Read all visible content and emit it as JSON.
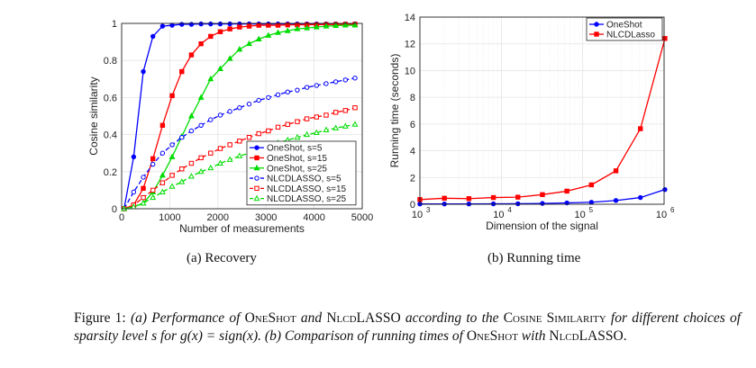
{
  "chart_data": [
    {
      "type": "line",
      "subcaption": "(a) Recovery",
      "xlabel": "Number of measurements",
      "ylabel": "Cosine similarity",
      "xlim": [
        0,
        5000
      ],
      "ylim": [
        0,
        1
      ],
      "xticks": [
        "0",
        "1000",
        "2000",
        "3000",
        "4000",
        "5000"
      ],
      "yticks": [
        "0",
        "0.2",
        "0.4",
        "0.6",
        "0.8",
        "1"
      ],
      "grid": true,
      "legend_position": "bottom-right",
      "x": [
        50,
        250,
        450,
        650,
        850,
        1050,
        1250,
        1450,
        1650,
        1850,
        2050,
        2250,
        2450,
        2650,
        2850,
        3050,
        3250,
        3450,
        3650,
        3850,
        4050,
        4250,
        4450,
        4650,
        4850
      ],
      "series": [
        {
          "name": "OneShot, s=5",
          "color": "#0000ff",
          "marker": "circle",
          "dash": false,
          "values": [
            0,
            0.28,
            0.74,
            0.93,
            0.985,
            0.99,
            0.995,
            0.995,
            0.997,
            0.997,
            0.997,
            0.997,
            0.997,
            0.997,
            0.997,
            0.997,
            0.997,
            0.997,
            0.997,
            0.997,
            0.997,
            0.997,
            0.997,
            0.997,
            0.998
          ]
        },
        {
          "name": "OneShot, s=15",
          "color": "#ff0000",
          "marker": "square",
          "dash": false,
          "values": [
            0,
            0.02,
            0.11,
            0.27,
            0.45,
            0.61,
            0.74,
            0.83,
            0.89,
            0.93,
            0.955,
            0.97,
            0.98,
            0.985,
            0.99,
            0.99,
            0.99,
            0.992,
            0.992,
            0.993,
            0.993,
            0.994,
            0.994,
            0.995,
            0.995
          ]
        },
        {
          "name": "OneShot, s=25",
          "color": "#00dd00",
          "marker": "triangle",
          "dash": false,
          "values": [
            0,
            0.01,
            0.03,
            0.09,
            0.18,
            0.28,
            0.39,
            0.5,
            0.6,
            0.7,
            0.755,
            0.81,
            0.86,
            0.89,
            0.915,
            0.935,
            0.95,
            0.96,
            0.97,
            0.975,
            0.98,
            0.985,
            0.988,
            0.99,
            0.99
          ]
        },
        {
          "name": "NLCDLASSO, s=5",
          "color": "#0000ff",
          "marker": "circle-open",
          "dash": true,
          "values": [
            0,
            0.09,
            0.17,
            0.24,
            0.3,
            0.345,
            0.385,
            0.42,
            0.45,
            0.48,
            0.505,
            0.525,
            0.545,
            0.565,
            0.585,
            0.6,
            0.615,
            0.63,
            0.64,
            0.655,
            0.665,
            0.675,
            0.685,
            0.695,
            0.705
          ]
        },
        {
          "name": "NLCDLASSO, s=15",
          "color": "#ff0000",
          "marker": "square-open",
          "dash": true,
          "values": [
            0,
            0.02,
            0.06,
            0.1,
            0.14,
            0.18,
            0.215,
            0.245,
            0.275,
            0.3,
            0.325,
            0.345,
            0.365,
            0.385,
            0.405,
            0.42,
            0.44,
            0.455,
            0.47,
            0.485,
            0.495,
            0.505,
            0.52,
            0.53,
            0.545
          ]
        },
        {
          "name": "NLCDLASSO, s=25",
          "color": "#00dd00",
          "marker": "triangle-open",
          "dash": true,
          "values": [
            0,
            0.01,
            0.03,
            0.06,
            0.09,
            0.12,
            0.145,
            0.175,
            0.2,
            0.22,
            0.245,
            0.265,
            0.285,
            0.3,
            0.32,
            0.34,
            0.355,
            0.37,
            0.385,
            0.4,
            0.41,
            0.425,
            0.435,
            0.445,
            0.455
          ]
        }
      ]
    },
    {
      "type": "line",
      "subcaption": "(b) Running time",
      "xlabel": "Dimension of the signal",
      "ylabel": "Running time (seconds)",
      "xscale": "log",
      "xlim": [
        1000,
        1000000
      ],
      "ylim": [
        0,
        14
      ],
      "xticks": [
        "10^3",
        "10^4",
        "10^5",
        "10^6"
      ],
      "yticks": [
        "0",
        "2",
        "4",
        "6",
        "8",
        "10",
        "12",
        "14"
      ],
      "grid": true,
      "legend_position": "top-right",
      "x": [
        1000,
        2000,
        4000,
        8000,
        16000,
        32000,
        64000,
        128000,
        256000,
        512000,
        1024000
      ],
      "series": [
        {
          "name": "OneShot",
          "color": "#0000ff",
          "marker": "circle",
          "values": [
            0.02,
            0.02,
            0.02,
            0.03,
            0.04,
            0.06,
            0.1,
            0.15,
            0.28,
            0.5,
            1.1
          ]
        },
        {
          "name": "NLCDLasso",
          "color": "#ff0000",
          "marker": "square",
          "values": [
            0.35,
            0.45,
            0.42,
            0.5,
            0.53,
            0.72,
            0.98,
            1.45,
            2.5,
            5.65,
            12.4
          ]
        }
      ]
    }
  ],
  "caption": {
    "label": "Figure 1:",
    "p1": "(a) Performance of",
    "oneshot": "OneShot",
    "and": "and",
    "nlcd": "Nlcd",
    "lasso": "LASSO",
    "p2": "according to the",
    "cosine": "Cosine Similarity",
    "p3": "for different choices of sparsity level s for g(x) = sign(x).",
    "p4": "(b) Comparison of running times of",
    "p5": "with",
    "end": "."
  }
}
